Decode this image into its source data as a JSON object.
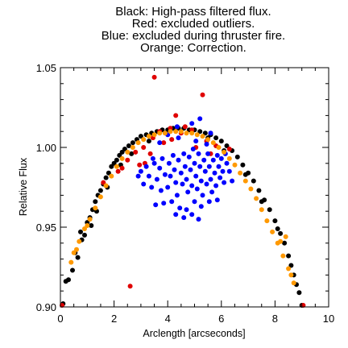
{
  "chart_data": {
    "type": "scatter",
    "title_lines": [
      "Black: High-pass filtered flux.",
      "Red: excluded outliers.",
      "Blue: excluded during thruster fire.",
      "Orange: Correction."
    ],
    "xlabel": "Arclength [arcseconds]",
    "ylabel": "Relative Flux",
    "xlim": [
      0,
      10
    ],
    "ylim": [
      0.9,
      1.05
    ],
    "x_ticks": [
      0,
      2,
      4,
      6,
      8,
      10
    ],
    "x_tick_labels": [
      "0",
      "2",
      "4",
      "6",
      "8",
      "10"
    ],
    "y_ticks": [
      0.9,
      0.95,
      1.0,
      1.05
    ],
    "y_tick_labels": [
      "0.90",
      "0.95",
      "1.00",
      "1.05"
    ],
    "grid": false,
    "series": [
      {
        "name": "Black: High-pass filtered flux",
        "color": "#000000",
        "points": [
          [
            0.1,
            0.902
          ],
          [
            0.2,
            0.916
          ],
          [
            0.3,
            0.917
          ],
          [
            0.45,
            0.923
          ],
          [
            0.55,
            0.934
          ],
          [
            0.65,
            0.931
          ],
          [
            0.8,
            0.942
          ],
          [
            0.9,
            0.945
          ],
          [
            1.0,
            0.953
          ],
          [
            1.1,
            0.956
          ],
          [
            1.2,
            0.961
          ],
          [
            1.3,
            0.966
          ],
          [
            1.4,
            0.97
          ],
          [
            1.5,
            0.973
          ],
          [
            1.6,
            0.977
          ],
          [
            1.7,
            0.981
          ],
          [
            1.8,
            0.984
          ],
          [
            1.9,
            0.988
          ],
          [
            2.0,
            0.99
          ],
          [
            2.1,
            0.992
          ],
          [
            2.2,
            0.995
          ],
          [
            2.3,
            0.997
          ],
          [
            2.4,
            0.999
          ],
          [
            2.55,
            1.001
          ],
          [
            2.7,
            1.003
          ],
          [
            2.85,
            1.005
          ],
          [
            3.0,
            1.007
          ],
          [
            3.2,
            1.008
          ],
          [
            3.4,
            1.009
          ],
          [
            3.6,
            1.01
          ],
          [
            3.8,
            1.011
          ],
          [
            4.0,
            1.011
          ],
          [
            4.2,
            1.012
          ],
          [
            4.4,
            1.012
          ],
          [
            4.6,
            1.012
          ],
          [
            4.8,
            1.011
          ],
          [
            5.0,
            1.011
          ],
          [
            5.2,
            1.01
          ],
          [
            5.4,
            1.009
          ],
          [
            5.6,
            1.008
          ],
          [
            5.8,
            1.006
          ],
          [
            6.0,
            1.004
          ],
          [
            6.2,
            1.001
          ],
          [
            6.4,
            0.998
          ],
          [
            6.6,
            0.994
          ],
          [
            6.8,
            0.989
          ],
          [
            7.0,
            0.984
          ],
          [
            7.2,
            0.979
          ],
          [
            7.4,
            0.973
          ],
          [
            7.6,
            0.967
          ],
          [
            7.8,
            0.961
          ],
          [
            8.0,
            0.954
          ],
          [
            8.2,
            0.946
          ],
          [
            8.35,
            0.94
          ],
          [
            8.5,
            0.932
          ],
          [
            8.6,
            0.926
          ],
          [
            8.7,
            0.92
          ],
          [
            8.8,
            0.914
          ],
          [
            8.9,
            0.909
          ],
          [
            9.0,
            0.901
          ],
          [
            1.15,
            0.951
          ],
          [
            1.35,
            0.96
          ],
          [
            1.75,
            0.975
          ],
          [
            2.25,
            0.989
          ],
          [
            2.65,
            0.996
          ],
          [
            3.3,
            1.004
          ],
          [
            5.5,
            1.006
          ],
          [
            6.1,
            0.998
          ],
          [
            6.9,
            0.983
          ],
          [
            7.5,
            0.966
          ],
          [
            8.1,
            0.949
          ],
          [
            0.75,
            0.947
          ]
        ]
      },
      {
        "name": "Red: excluded outliers",
        "color": "#e00000",
        "points": [
          [
            0.05,
            0.901
          ],
          [
            3.5,
            1.044
          ],
          [
            5.3,
            1.033
          ],
          [
            2.6,
            0.913
          ],
          [
            9.05,
            0.9
          ],
          [
            4.3,
            1.02
          ],
          [
            1.6,
            0.978
          ],
          [
            2.3,
            0.987
          ],
          [
            2.8,
            0.997
          ],
          [
            3.1,
            1.0
          ],
          [
            3.15,
            0.99
          ],
          [
            2.95,
            0.989
          ],
          [
            3.45,
            1.006
          ],
          [
            3.7,
            1.01
          ],
          [
            4.1,
            1.012
          ],
          [
            4.5,
            1.009
          ],
          [
            4.9,
            1.011
          ],
          [
            5.45,
            1.004
          ],
          [
            5.8,
            1.001
          ],
          [
            6.3,
            0.999
          ],
          [
            2.5,
            0.992
          ],
          [
            3.85,
            1.003
          ],
          [
            4.65,
            1.013
          ],
          [
            5.05,
            1.0
          ],
          [
            5.6,
            0.996
          ],
          [
            3.35,
            0.996
          ],
          [
            4.15,
            1.005
          ],
          [
            2.15,
            0.985
          ]
        ]
      },
      {
        "name": "Blue: excluded during thruster fire",
        "color": "#0000ff",
        "points": [
          [
            3.0,
            0.985
          ],
          [
            3.1,
            0.977
          ],
          [
            3.2,
            0.988
          ],
          [
            3.3,
            0.982
          ],
          [
            3.4,
            0.975
          ],
          [
            3.5,
            0.99
          ],
          [
            3.6,
            0.98
          ],
          [
            3.7,
            0.987
          ],
          [
            3.75,
            0.973
          ],
          [
            3.8,
            0.993
          ],
          [
            3.9,
            0.983
          ],
          [
            4.0,
            0.975
          ],
          [
            4.05,
            0.99
          ],
          [
            4.1,
            0.982
          ],
          [
            4.2,
            0.995
          ],
          [
            4.25,
            0.986
          ],
          [
            4.3,
            0.978
          ],
          [
            4.35,
            0.97
          ],
          [
            4.4,
            0.992
          ],
          [
            4.5,
            0.984
          ],
          [
            4.55,
            0.977
          ],
          [
            4.6,
            0.996
          ],
          [
            4.65,
            0.988
          ],
          [
            4.7,
            0.98
          ],
          [
            4.75,
            0.972
          ],
          [
            4.8,
            0.994
          ],
          [
            4.85,
            0.986
          ],
          [
            4.9,
            0.976
          ],
          [
            4.95,
            0.999
          ],
          [
            5.0,
            0.99
          ],
          [
            5.05,
            0.982
          ],
          [
            5.1,
            0.974
          ],
          [
            5.15,
            0.996
          ],
          [
            5.2,
            0.988
          ],
          [
            5.25,
            0.979
          ],
          [
            5.3,
            0.97
          ],
          [
            5.35,
            0.992
          ],
          [
            5.4,
            0.985
          ],
          [
            5.45,
            0.977
          ],
          [
            5.5,
            0.996
          ],
          [
            5.55,
            0.988
          ],
          [
            5.6,
            0.98
          ],
          [
            5.65,
            0.972
          ],
          [
            5.7,
            0.992
          ],
          [
            5.75,
            0.984
          ],
          [
            5.8,
            0.976
          ],
          [
            5.85,
            0.995
          ],
          [
            5.9,
            0.988
          ],
          [
            5.95,
            0.981
          ],
          [
            6.0,
            0.993
          ],
          [
            6.05,
            0.985
          ],
          [
            6.1,
            0.978
          ],
          [
            6.2,
            0.99
          ],
          [
            6.3,
            0.985
          ],
          [
            6.4,
            0.979
          ],
          [
            3.55,
            0.964
          ],
          [
            3.85,
            0.965
          ],
          [
            4.15,
            0.966
          ],
          [
            4.45,
            0.962
          ],
          [
            4.7,
            0.961
          ],
          [
            5.0,
            0.966
          ],
          [
            5.25,
            0.963
          ],
          [
            5.55,
            0.966
          ],
          [
            5.85,
            0.967
          ],
          [
            4.6,
            0.956
          ],
          [
            4.9,
            0.958
          ],
          [
            5.15,
            0.955
          ],
          [
            4.3,
            0.958
          ],
          [
            3.7,
            1.003
          ],
          [
            4.4,
            1.006
          ],
          [
            5.05,
            1.004
          ],
          [
            5.45,
            1.002
          ],
          [
            5.2,
            1.018
          ],
          [
            4.9,
            1.015
          ],
          [
            4.35,
            1.013
          ],
          [
            3.45,
            0.993
          ],
          [
            6.15,
            0.996
          ],
          [
            2.9,
            0.982
          ],
          [
            5.6,
            1.009
          ],
          [
            4.0,
            1.008
          ]
        ]
      },
      {
        "name": "Orange: Correction",
        "color": "#ff9900",
        "points": [
          [
            0.5,
            0.934
          ],
          [
            0.7,
            0.941
          ],
          [
            0.9,
            0.949
          ],
          [
            1.0,
            0.951
          ],
          [
            1.1,
            0.955
          ],
          [
            1.3,
            0.962
          ],
          [
            1.5,
            0.969
          ],
          [
            1.7,
            0.976
          ],
          [
            1.9,
            0.982
          ],
          [
            2.1,
            0.988
          ],
          [
            2.3,
            0.993
          ],
          [
            2.5,
            0.997
          ],
          [
            2.7,
            1.0
          ],
          [
            2.9,
            1.003
          ],
          [
            3.1,
            1.005
          ],
          [
            3.3,
            1.007
          ],
          [
            3.5,
            1.008
          ],
          [
            3.7,
            1.009
          ],
          [
            3.9,
            1.009
          ],
          [
            4.1,
            1.01
          ],
          [
            4.3,
            1.01
          ],
          [
            4.5,
            1.01
          ],
          [
            4.7,
            1.009
          ],
          [
            4.9,
            1.009
          ],
          [
            5.1,
            1.008
          ],
          [
            5.3,
            1.007
          ],
          [
            5.5,
            1.005
          ],
          [
            5.7,
            1.003
          ],
          [
            5.9,
            1.0
          ],
          [
            6.1,
            0.997
          ],
          [
            6.3,
            0.993
          ],
          [
            6.5,
            0.989
          ],
          [
            6.7,
            0.984
          ],
          [
            6.9,
            0.979
          ],
          [
            7.1,
            0.974
          ],
          [
            7.3,
            0.968
          ],
          [
            7.5,
            0.961
          ],
          [
            7.7,
            0.954
          ],
          [
            7.9,
            0.947
          ],
          [
            8.1,
            0.94
          ],
          [
            8.3,
            0.932
          ],
          [
            8.5,
            0.924
          ],
          [
            8.6,
            0.92
          ],
          [
            8.7,
            0.915
          ],
          [
            0.6,
            0.936
          ],
          [
            8.4,
            0.944
          ],
          [
            0.4,
            0.928
          ],
          [
            8.2,
            0.941
          ]
        ]
      }
    ]
  }
}
